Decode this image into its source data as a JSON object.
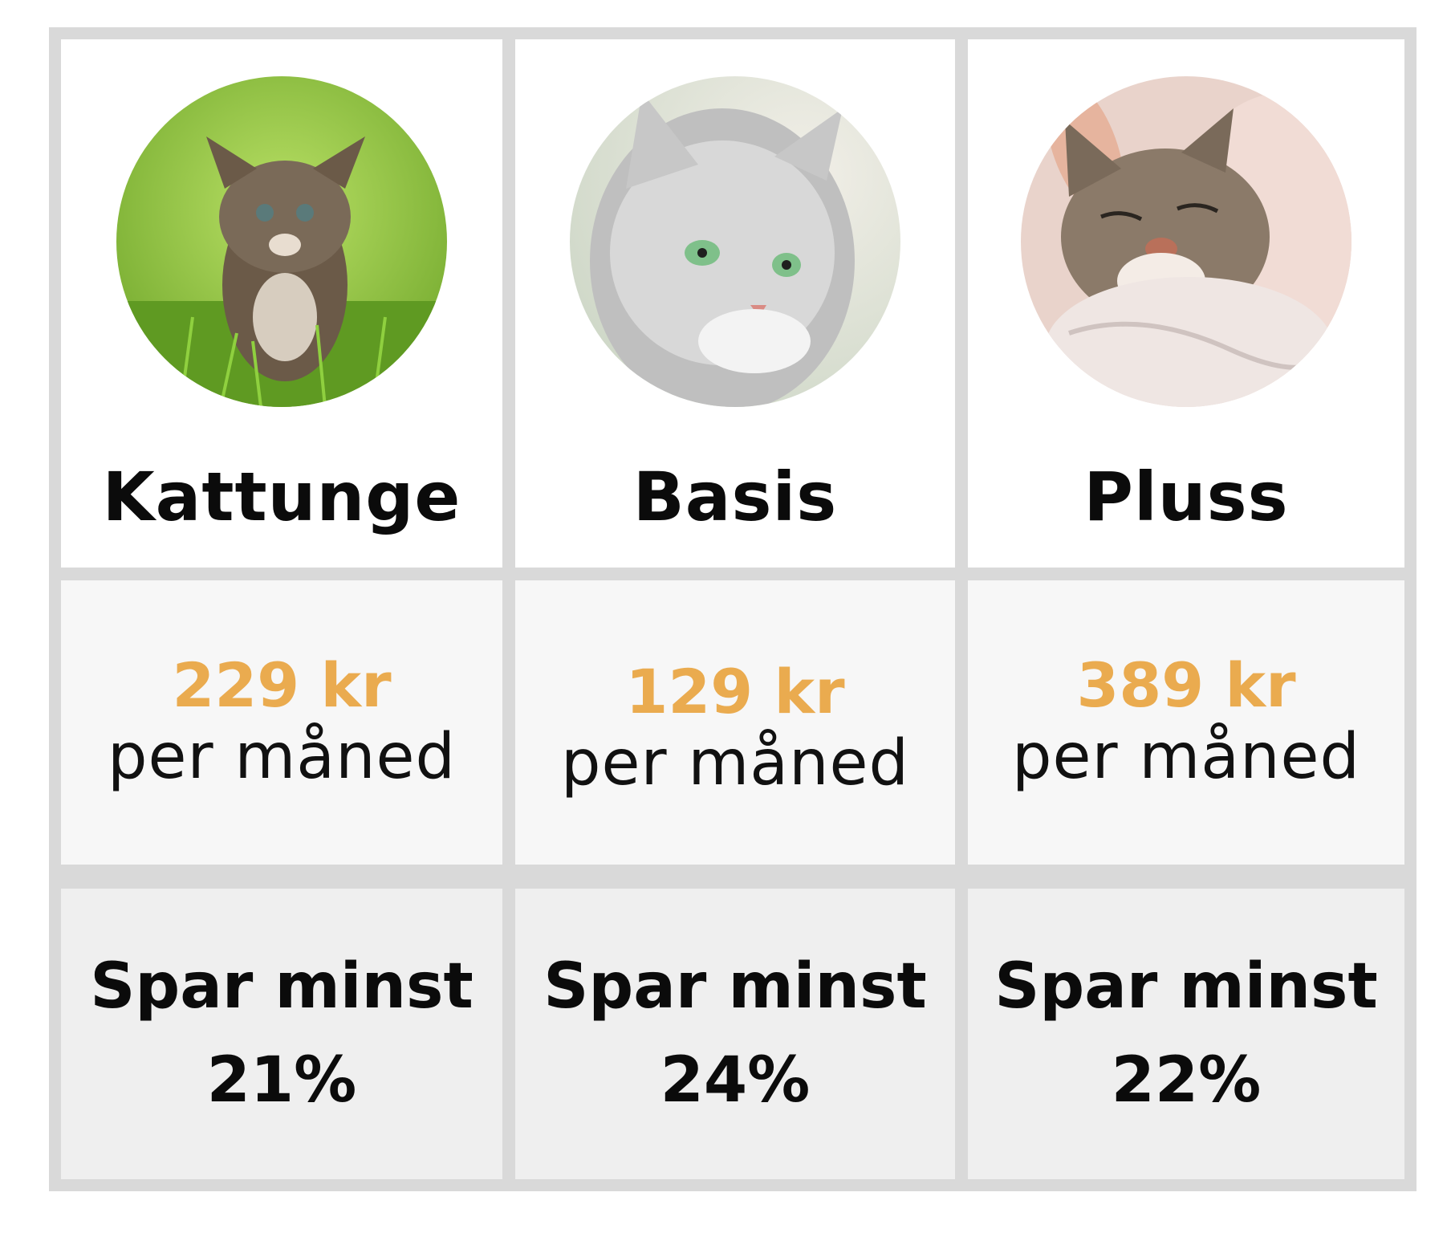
{
  "plans": [
    {
      "name": "Kattunge",
      "image": "kitten-in-grass-photo",
      "price": "229 kr",
      "period": "per måned",
      "save_line1": "Spar minst",
      "save_line2": "21%"
    },
    {
      "name": "Basis",
      "image": "grey-cat-portrait-photo",
      "price": "129 kr",
      "period": "per måned",
      "save_line1": "Spar minst",
      "save_line2": "24%"
    },
    {
      "name": "Pluss",
      "image": "tabby-cat-petted-photo",
      "price": "389 kr",
      "period": "per måned",
      "save_line1": "Spar minst",
      "save_line2": "22%"
    }
  ],
  "colors": {
    "price": "#eaab4f",
    "border": "#d9d9d9",
    "kitten_bg": "#8fc43a",
    "grey_bg": "#e9e4dc",
    "tabby_bg": "#e8cfc8"
  }
}
